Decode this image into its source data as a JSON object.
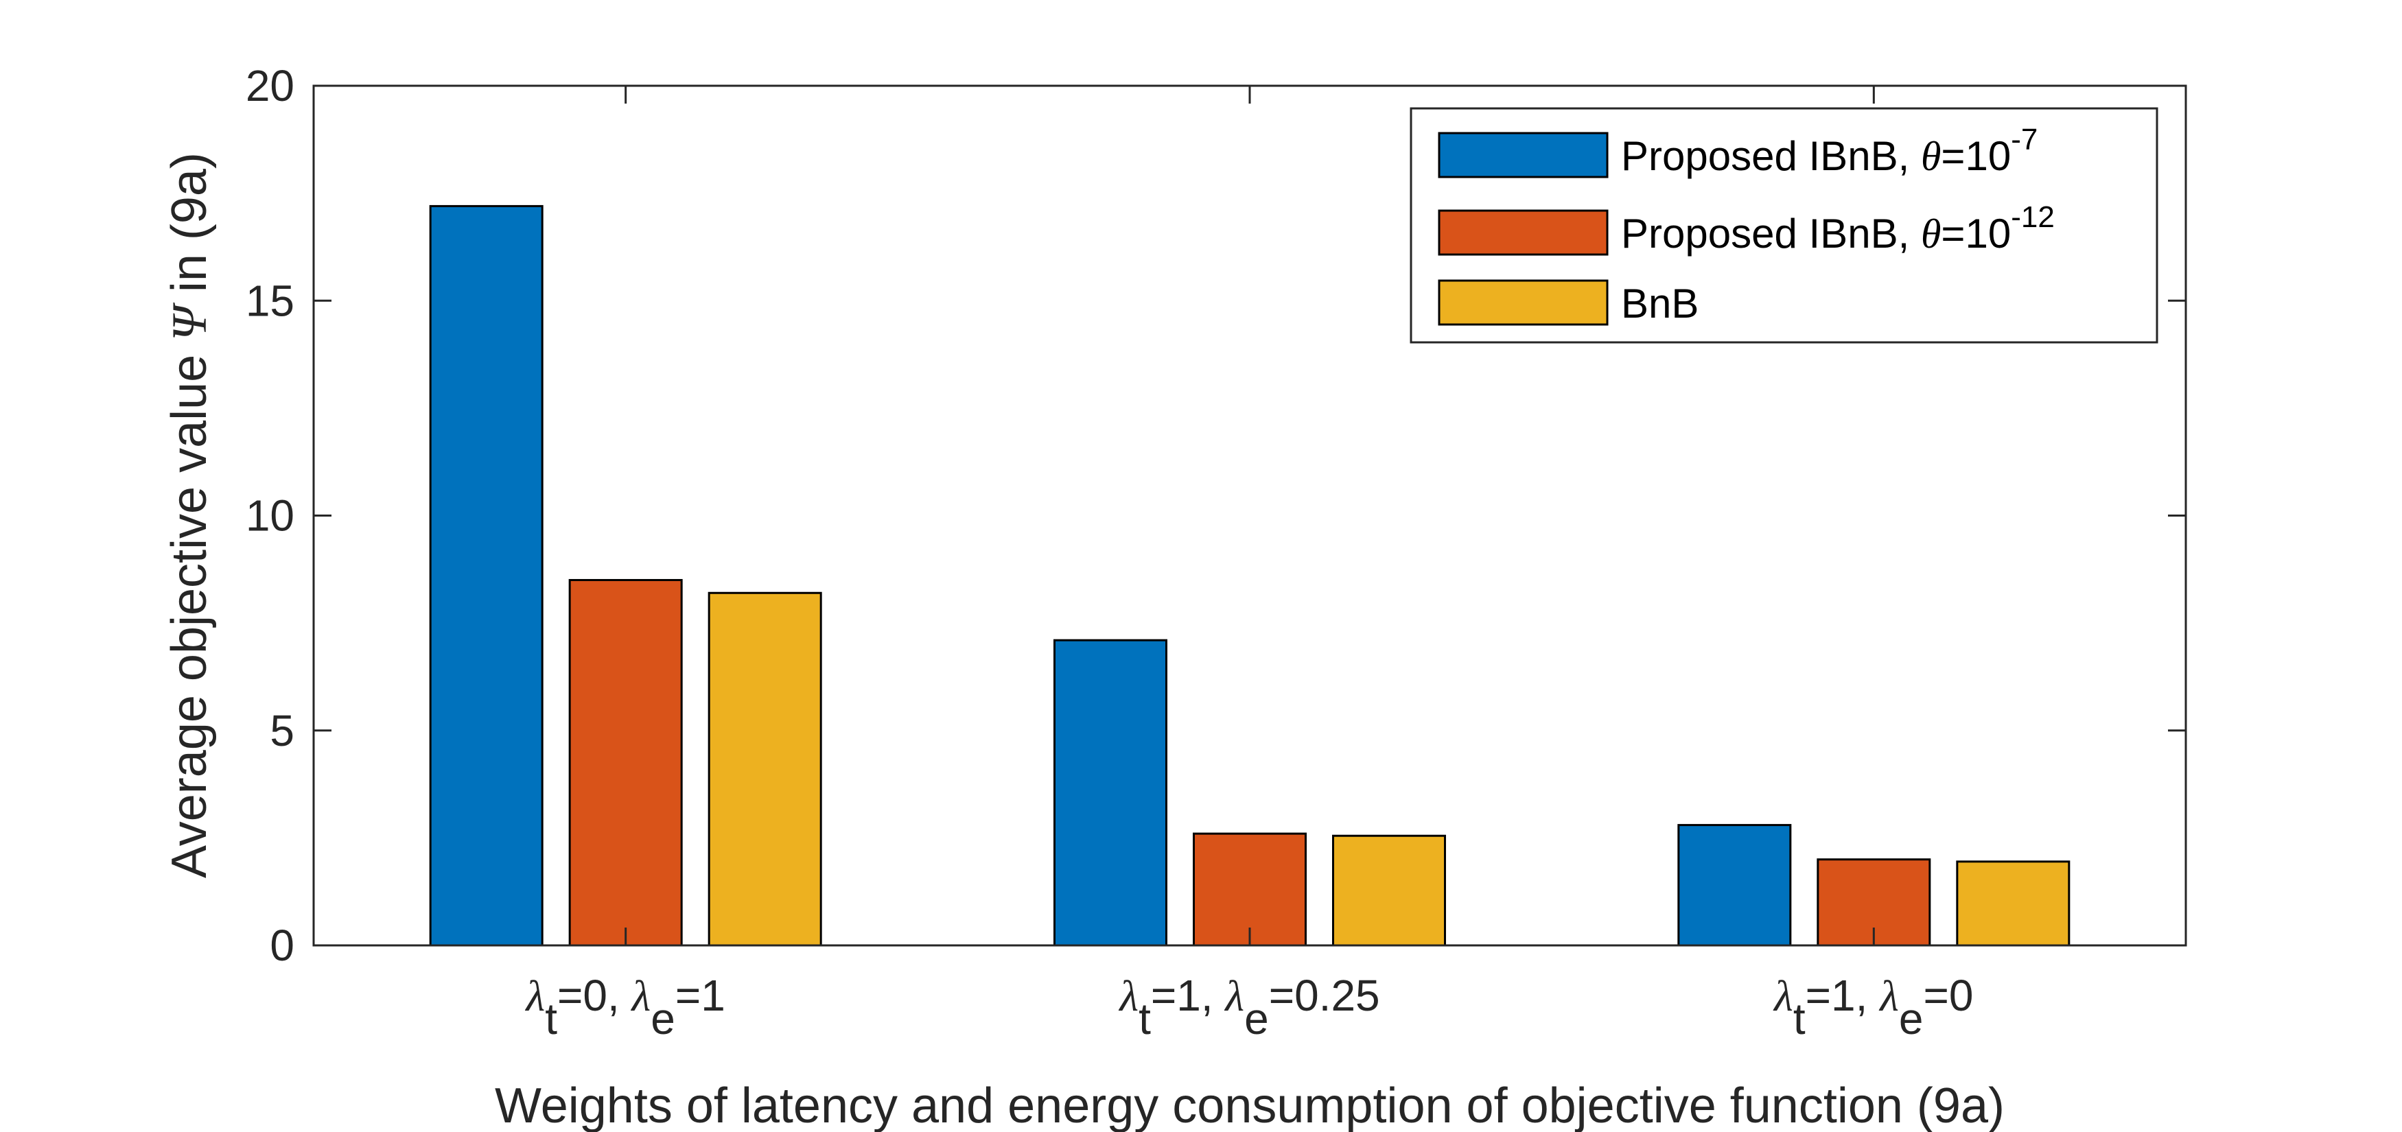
{
  "chart_data": {
    "type": "bar",
    "title": "",
    "xlabel": "Weights of latency and energy consumption of objective function (9a)",
    "ylabel": {
      "prefix": "Average objective value ",
      "symbol": "Ψ",
      "suffix": " in (9a)"
    },
    "ylim": [
      0,
      20
    ],
    "yticks": [
      0,
      5,
      10,
      15,
      20
    ],
    "categories": [
      {
        "lt": "0",
        "le": "1"
      },
      {
        "lt": "1",
        "le": "0.25"
      },
      {
        "lt": "1",
        "le": "0"
      }
    ],
    "category_template": {
      "sym": "λ",
      "t": "t",
      "e": "e",
      "eq": "=",
      "sep": ", "
    },
    "series": [
      {
        "name": "Proposed IBnB",
        "theta_exp": "-7",
        "color": "#0072BD",
        "values": [
          17.2,
          7.1,
          2.8
        ]
      },
      {
        "name": "Proposed IBnB",
        "theta_exp": "-12",
        "color": "#D95319",
        "values": [
          8.5,
          2.6,
          2.0
        ]
      },
      {
        "name": "BnB",
        "theta_exp": null,
        "color": "#EDB120",
        "values": [
          8.2,
          2.55,
          1.95
        ]
      }
    ],
    "legend": {
      "position": "top-right",
      "theta_symbol": "θ",
      "theta_base": "=10",
      "sep": ", "
    },
    "grid": false
  }
}
